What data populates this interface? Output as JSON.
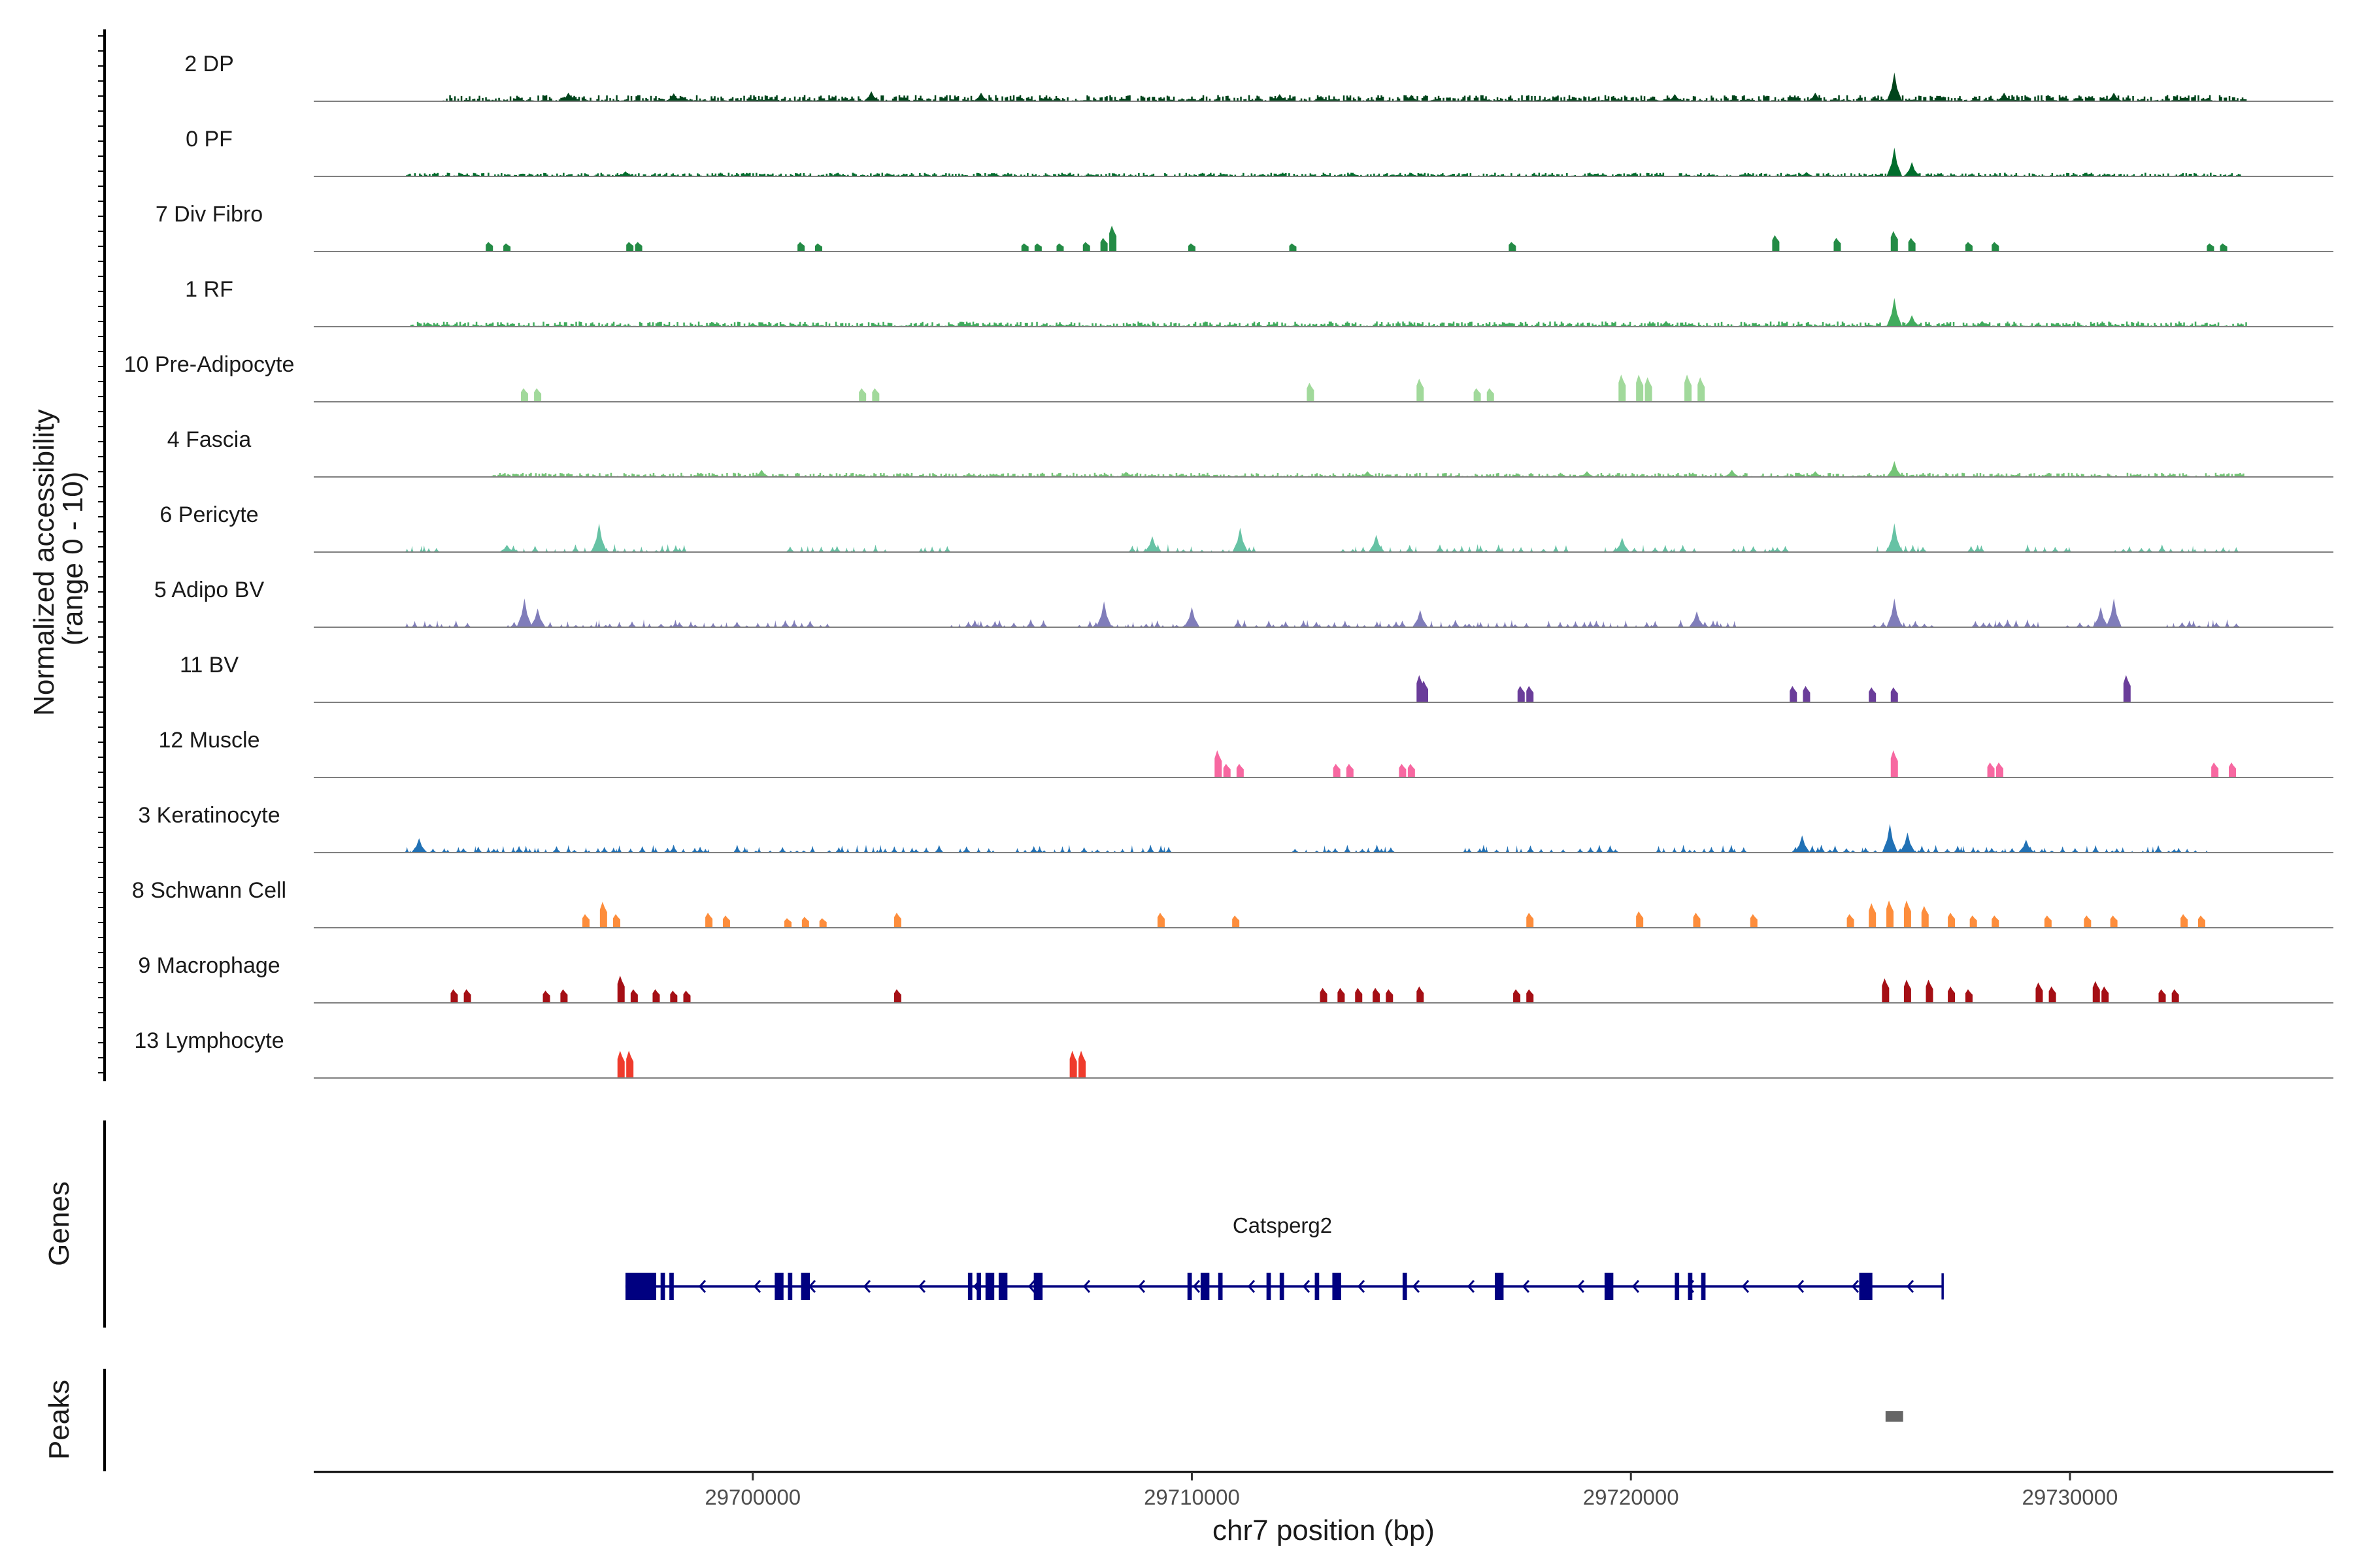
{
  "chart_data": {
    "type": "coverage",
    "ylabel": [
      "Normalized accessibility",
      "(range 0 - 10)"
    ],
    "xlabel": "chr7 position (bp)",
    "chromosome": "chr7",
    "xlim": [
      29690000,
      29736000
    ],
    "x_ticks": [
      {
        "value": 29700000,
        "label": "29700000"
      },
      {
        "value": 29710000,
        "label": "29710000"
      },
      {
        "value": 29720000,
        "label": "29720000"
      },
      {
        "value": 29730000,
        "label": "29730000"
      }
    ],
    "colors": {
      "2 DP": "#00441b",
      "0 PF": "#006d2c",
      "7 Div Fibro": "#238b45",
      "1 RF": "#41ab5d",
      "10 Pre-Adipocyte": "#a1d99b",
      "4 Fascia": "#74c476",
      "6 Pericyte": "#66c2a4",
      "5 Adipo BV": "#807dba",
      "11 BV": "#6a3d9a",
      "12 Muscle": "#f768a1",
      "3 Keratinocyte": "#2171b5",
      "8 Schwann Cell": "#fd8d3c",
      "9 Macrophage": "#a50f15",
      "13 Lymphocyte": "#ef3b2c",
      "gene": "#000080",
      "peak": "#666666"
    },
    "tracks": [
      {
        "name": "2 DP",
        "mode": "dense",
        "coverage": [
          29692900,
          29734000
        ],
        "base": 0.12,
        "peaks": [
          [
            29695800,
            0.3
          ],
          [
            29698200,
            0.28
          ],
          [
            29702700,
            0.35
          ],
          [
            29705200,
            0.3
          ],
          [
            29712000,
            0.25
          ],
          [
            29715000,
            0.22
          ],
          [
            29721000,
            0.25
          ],
          [
            29724200,
            0.3
          ],
          [
            29726000,
            1.0
          ],
          [
            29728500,
            0.3
          ],
          [
            29731000,
            0.3
          ]
        ]
      },
      {
        "name": "0 PF",
        "mode": "dense",
        "coverage": [
          29692100,
          29734000
        ],
        "base": 0.07,
        "peaks": [
          [
            29697100,
            0.18
          ],
          [
            29705500,
            0.12
          ],
          [
            29715000,
            0.12
          ],
          [
            29724000,
            0.15
          ],
          [
            29726000,
            1.0
          ],
          [
            29726400,
            0.5
          ]
        ]
      },
      {
        "name": "7 Div Fibro",
        "mode": "sparse",
        "peaks": [
          [
            29694000,
            0.35
          ],
          [
            29694400,
            0.3
          ],
          [
            29697200,
            0.35
          ],
          [
            29697400,
            0.35
          ],
          [
            29701100,
            0.35
          ],
          [
            29701500,
            0.3
          ],
          [
            29706200,
            0.3
          ],
          [
            29706500,
            0.3
          ],
          [
            29707000,
            0.3
          ],
          [
            29707600,
            0.35
          ],
          [
            29708000,
            0.5
          ],
          [
            29708200,
            0.95
          ],
          [
            29710000,
            0.3
          ],
          [
            29712300,
            0.3
          ],
          [
            29717300,
            0.35
          ],
          [
            29723300,
            0.6
          ],
          [
            29724700,
            0.5
          ],
          [
            29726000,
            0.75
          ],
          [
            29726400,
            0.5
          ],
          [
            29727700,
            0.35
          ],
          [
            29728300,
            0.35
          ],
          [
            29733200,
            0.3
          ],
          [
            29733500,
            0.3
          ]
        ]
      },
      {
        "name": "1 RF",
        "mode": "dense",
        "coverage": [
          29692200,
          29734000
        ],
        "base": 0.1,
        "peaks": [
          [
            29692600,
            0.15
          ],
          [
            29700000,
            0.12
          ],
          [
            29707000,
            0.12
          ],
          [
            29715000,
            0.12
          ],
          [
            29720800,
            0.2
          ],
          [
            29726000,
            1.0
          ],
          [
            29726400,
            0.4
          ],
          [
            29728000,
            0.2
          ]
        ]
      },
      {
        "name": "10 Pre-Adipocyte",
        "mode": "sparse",
        "peaks": [
          [
            29694800,
            0.5
          ],
          [
            29695100,
            0.5
          ],
          [
            29702500,
            0.5
          ],
          [
            29702800,
            0.5
          ],
          [
            29712700,
            0.7
          ],
          [
            29715200,
            0.85
          ],
          [
            29716500,
            0.5
          ],
          [
            29716800,
            0.5
          ],
          [
            29719800,
            1.0
          ],
          [
            29720200,
            1.0
          ],
          [
            29720400,
            0.9
          ],
          [
            29721300,
            1.0
          ],
          [
            29721600,
            0.9
          ]
        ]
      },
      {
        "name": "4 Fascia",
        "mode": "dense",
        "coverage": [
          29694000,
          29734000
        ],
        "base": 0.08,
        "peaks": [
          [
            29700200,
            0.25
          ],
          [
            29708500,
            0.18
          ],
          [
            29714000,
            0.2
          ],
          [
            29719000,
            0.2
          ],
          [
            29722300,
            0.25
          ],
          [
            29724200,
            0.2
          ],
          [
            29726000,
            0.55
          ]
        ]
      },
      {
        "name": "6 Pericyte",
        "mode": "blocks",
        "seed": 11,
        "ranges": [
          [
            29692100,
            29692900
          ],
          [
            29694400,
            29698500
          ],
          [
            29700800,
            29703000
          ],
          [
            29703800,
            29704500
          ],
          [
            29708600,
            29711500
          ],
          [
            29713400,
            29715200
          ],
          [
            29715600,
            29718500
          ],
          [
            29719400,
            29721500
          ],
          [
            29722300,
            29723700
          ],
          [
            29725600,
            29726800
          ],
          [
            29727700,
            29728100
          ],
          [
            29729000,
            29730000
          ],
          [
            29731000,
            29733800
          ]
        ],
        "peaks": [
          [
            29696500,
            1.0
          ],
          [
            29711100,
            0.85
          ],
          [
            29709100,
            0.55
          ],
          [
            29714200,
            0.6
          ],
          [
            29719800,
            0.5
          ],
          [
            29726000,
            1.0
          ],
          [
            29694400,
            0.25
          ]
        ]
      },
      {
        "name": "5 Adipo BV",
        "mode": "blocks",
        "seed": 23,
        "ranges": [
          [
            29692100,
            29693700
          ],
          [
            29694400,
            29697000
          ],
          [
            29697200,
            29701800
          ],
          [
            29704500,
            29706700
          ],
          [
            29707400,
            29709800
          ],
          [
            29711000,
            29714800
          ],
          [
            29715200,
            29717600
          ],
          [
            29718100,
            29720600
          ],
          [
            29721100,
            29722400
          ],
          [
            29725500,
            29727000
          ],
          [
            29727800,
            29729300
          ],
          [
            29729900,
            29731300
          ],
          [
            29732200,
            29733900
          ]
        ],
        "peaks": [
          [
            29694800,
            1.0
          ],
          [
            29695100,
            0.65
          ],
          [
            29708000,
            0.9
          ],
          [
            29710000,
            0.7
          ],
          [
            29715200,
            0.6
          ],
          [
            29721500,
            0.55
          ],
          [
            29726000,
            1.0
          ],
          [
            29731000,
            1.0
          ],
          [
            29730700,
            0.7
          ]
        ]
      },
      {
        "name": "11 BV",
        "mode": "sparse",
        "peaks": [
          [
            29715200,
            1.0
          ],
          [
            29715300,
            0.8
          ],
          [
            29717500,
            0.6
          ],
          [
            29717700,
            0.6
          ],
          [
            29723700,
            0.6
          ],
          [
            29724000,
            0.6
          ],
          [
            29725500,
            0.55
          ],
          [
            29726000,
            0.55
          ],
          [
            29731300,
            1.0
          ]
        ]
      },
      {
        "name": "12 Muscle",
        "mode": "sparse",
        "peaks": [
          [
            29710600,
            1.0
          ],
          [
            29710800,
            0.5
          ],
          [
            29711100,
            0.5
          ],
          [
            29713300,
            0.5
          ],
          [
            29713600,
            0.5
          ],
          [
            29714800,
            0.5
          ],
          [
            29715000,
            0.5
          ],
          [
            29726000,
            1.0
          ],
          [
            29728200,
            0.55
          ],
          [
            29728400,
            0.55
          ],
          [
            29733300,
            0.55
          ],
          [
            29733700,
            0.55
          ]
        ]
      },
      {
        "name": "3 Keratinocyte",
        "mode": "blocks",
        "seed": 37,
        "ranges": [
          [
            29692100,
            29699000
          ],
          [
            29699600,
            29701400
          ],
          [
            29701700,
            29704200
          ],
          [
            29704700,
            29705500
          ],
          [
            29706000,
            29707200
          ],
          [
            29707500,
            29709600
          ],
          [
            29712300,
            29714600
          ],
          [
            29716200,
            29718500
          ],
          [
            29718800,
            29719800
          ],
          [
            29720600,
            29722600
          ],
          [
            29723700,
            29733200
          ]
        ],
        "peaks": [
          [
            29692400,
            0.5
          ],
          [
            29723900,
            0.6
          ],
          [
            29725900,
            1.0
          ],
          [
            29726300,
            0.7
          ],
          [
            29729000,
            0.45
          ]
        ]
      },
      {
        "name": "8 Schwann Cell",
        "mode": "sparse",
        "peaks": [
          [
            29696200,
            0.5
          ],
          [
            29696600,
            0.95
          ],
          [
            29696900,
            0.5
          ],
          [
            29699000,
            0.55
          ],
          [
            29699400,
            0.45
          ],
          [
            29700800,
            0.35
          ],
          [
            29701200,
            0.4
          ],
          [
            29701600,
            0.35
          ],
          [
            29703300,
            0.55
          ],
          [
            29709300,
            0.55
          ],
          [
            29711000,
            0.45
          ],
          [
            29717700,
            0.55
          ],
          [
            29720200,
            0.6
          ],
          [
            29721500,
            0.55
          ],
          [
            29722800,
            0.5
          ],
          [
            29725000,
            0.5
          ],
          [
            29725500,
            0.9
          ],
          [
            29725900,
            1.0
          ],
          [
            29726300,
            1.0
          ],
          [
            29726700,
            0.8
          ],
          [
            29727300,
            0.55
          ],
          [
            29727800,
            0.45
          ],
          [
            29728300,
            0.45
          ],
          [
            29729500,
            0.45
          ],
          [
            29730400,
            0.45
          ],
          [
            29731000,
            0.45
          ],
          [
            29732600,
            0.5
          ],
          [
            29733000,
            0.45
          ]
        ]
      },
      {
        "name": "9 Macrophage",
        "mode": "sparse",
        "peaks": [
          [
            29693200,
            0.5
          ],
          [
            29693500,
            0.5
          ],
          [
            29695300,
            0.45
          ],
          [
            29695700,
            0.5
          ],
          [
            29697000,
            1.0
          ],
          [
            29697300,
            0.5
          ],
          [
            29697800,
            0.5
          ],
          [
            29698200,
            0.45
          ],
          [
            29698500,
            0.45
          ],
          [
            29703300,
            0.5
          ],
          [
            29713000,
            0.55
          ],
          [
            29713400,
            0.55
          ],
          [
            29713800,
            0.55
          ],
          [
            29714200,
            0.55
          ],
          [
            29714500,
            0.5
          ],
          [
            29715200,
            0.6
          ],
          [
            29717400,
            0.5
          ],
          [
            29717700,
            0.5
          ],
          [
            29725800,
            0.9
          ],
          [
            29726300,
            0.85
          ],
          [
            29726800,
            0.85
          ],
          [
            29727300,
            0.6
          ],
          [
            29727700,
            0.5
          ],
          [
            29729300,
            0.75
          ],
          [
            29729600,
            0.6
          ],
          [
            29730600,
            0.8
          ],
          [
            29730800,
            0.6
          ],
          [
            29732100,
            0.5
          ],
          [
            29732400,
            0.5
          ]
        ]
      },
      {
        "name": "13 Lymphocyte",
        "mode": "sparse",
        "peaks": [
          [
            29697000,
            1.0
          ],
          [
            29697200,
            1.0
          ],
          [
            29707300,
            1.0
          ],
          [
            29707500,
            1.0
          ]
        ]
      }
    ],
    "genes_track": {
      "label": "Genes",
      "gene_name": "Catsperg2",
      "start": 29697100,
      "end": 29727100,
      "strand": "-",
      "exons": [
        [
          29697100,
          29697800
        ],
        [
          29697900,
          29698000
        ],
        [
          29698100,
          29698200
        ],
        [
          29700500,
          29700700
        ],
        [
          29700800,
          29700900
        ],
        [
          29701100,
          29701300
        ],
        [
          29704900,
          29705000
        ],
        [
          29705100,
          29705200
        ],
        [
          29705300,
          29705500
        ],
        [
          29705600,
          29705800
        ],
        [
          29706400,
          29706600
        ],
        [
          29709900,
          29710000
        ],
        [
          29710200,
          29710400
        ],
        [
          29710600,
          29710700
        ],
        [
          29711700,
          29711800
        ],
        [
          29712000,
          29712100
        ],
        [
          29712800,
          29712900
        ],
        [
          29713200,
          29713400
        ],
        [
          29714800,
          29714900
        ],
        [
          29716900,
          29717100
        ],
        [
          29719400,
          29719600
        ],
        [
          29721000,
          29721100
        ],
        [
          29721300,
          29721400
        ],
        [
          29721600,
          29721700
        ],
        [
          29725200,
          29725500
        ]
      ]
    },
    "peaks_track": {
      "label": "Peaks",
      "regions": [
        [
          29725800,
          29726200
        ]
      ]
    }
  }
}
